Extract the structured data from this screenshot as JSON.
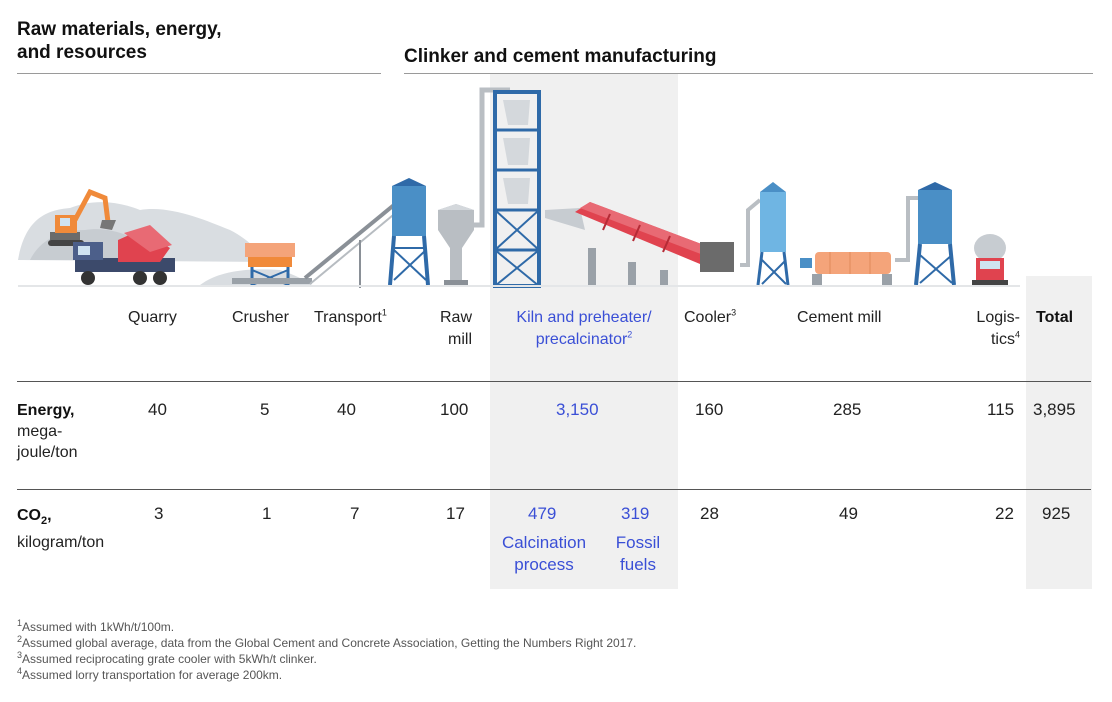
{
  "sections": {
    "raw_title_line1": "Raw materials, energy,",
    "raw_title_line2": "and resources",
    "clinker_title": "Clinker and cement manufacturing"
  },
  "columns": {
    "quarry": "Quarry",
    "crusher": "Crusher",
    "transport": "Transport",
    "transport_note": "1",
    "raw_mill_l1": "Raw",
    "raw_mill_l2": "mill",
    "kiln_l1": "Kiln and preheater/",
    "kiln_l2": "precalcinator",
    "kiln_note": "2",
    "cooler": "Cooler",
    "cooler_note": "3",
    "cement_mill": "Cement mill",
    "logistics_l1": "Logis-",
    "logistics_l2": "tics",
    "logistics_note": "4",
    "total": "Total"
  },
  "rows": {
    "energy": {
      "label_bold": "Energy,",
      "label_l2": "mega-",
      "label_l3": "joule/ton",
      "quarry": "40",
      "crusher": "5",
      "transport": "40",
      "raw_mill": "100",
      "kiln": "3,150",
      "cooler": "160",
      "cement_mill": "285",
      "logistics": "115",
      "total": "3,895"
    },
    "co2": {
      "label_bold_prefix": "CO",
      "label_bold_sub": "2",
      "label_bold_suffix": ",",
      "label_l2": "kilogram/ton",
      "quarry": "3",
      "crusher": "1",
      "transport": "7",
      "raw_mill": "17",
      "kiln_calcination": "479",
      "kiln_calcination_label_l1": "Calcination",
      "kiln_calcination_label_l2": "process",
      "kiln_fossil": "319",
      "kiln_fossil_label_l1": "Fossil",
      "kiln_fossil_label_l2": "fuels",
      "cooler": "28",
      "cement_mill": "49",
      "logistics": "22",
      "total": "925"
    }
  },
  "footnotes": {
    "n1_mark": "1",
    "n1_text": "Assumed with 1kWh/t/100m.",
    "n2_mark": "2",
    "n2_text": "Assumed global average, data from the Global Cement and Concrete Association, Getting the Numbers Right 2017.",
    "n3_mark": "3",
    "n3_text": "Assumed reciprocating grate cooler with 5kWh/t clinker.",
    "n4_mark": "4",
    "n4_text": "Assumed lorry transportation for average 200km."
  },
  "colors": {
    "accent": "#3a4fd6",
    "shade": "#f0f0f0",
    "kiln_red": "#e0434f",
    "silo_blue": "#4a8fc6",
    "tower_blue": "#2f6aa8",
    "excavator_orange": "#f08a3a",
    "crusher_orange": "#f4a47a"
  }
}
